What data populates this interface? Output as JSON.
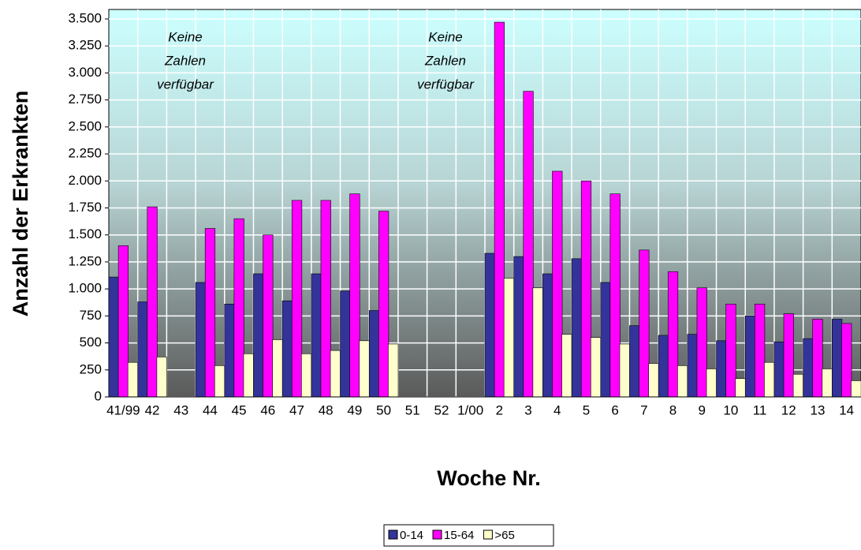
{
  "chart_data": {
    "type": "bar",
    "x_label": "Woche Nr.",
    "y_label": "Anzahl der Erkrankten",
    "categories": [
      "41/99",
      "42",
      "43",
      "44",
      "45",
      "46",
      "47",
      "48",
      "49",
      "50",
      "51",
      "52",
      "1/00",
      "2",
      "3",
      "4",
      "5",
      "6",
      "7",
      "8",
      "9",
      "10",
      "11",
      "12",
      "13",
      "14"
    ],
    "series": [
      {
        "name": "0-14",
        "color": "#333399",
        "values": [
          1110,
          880,
          null,
          1060,
          860,
          1140,
          890,
          1140,
          980,
          800,
          null,
          null,
          null,
          1330,
          1300,
          1140,
          1280,
          1060,
          660,
          570,
          580,
          520,
          750,
          510,
          540,
          720
        ]
      },
      {
        "name": "15-64",
        "color": "#ff00ff",
        "values": [
          1400,
          1760,
          null,
          1560,
          1650,
          1500,
          1820,
          1820,
          1880,
          1720,
          null,
          null,
          null,
          3470,
          2830,
          2090,
          2000,
          1880,
          1360,
          1160,
          1010,
          860,
          860,
          770,
          720,
          680
        ]
      },
      {
        "name": ">65",
        "color": "#ffffcc",
        "values": [
          320,
          370,
          null,
          290,
          400,
          530,
          400,
          430,
          520,
          490,
          null,
          null,
          null,
          1100,
          1010,
          580,
          550,
          490,
          310,
          290,
          260,
          170,
          320,
          210,
          260,
          150
        ]
      }
    ],
    "ylim": [
      0,
      3500
    ],
    "yticks": [
      0,
      {
        "value": 250,
        "label": "250"
      },
      {
        "value": 500,
        "label": "500"
      },
      {
        "value": 750,
        "label": "750"
      },
      {
        "value": 1000,
        "label": "1.000"
      },
      {
        "value": 1250,
        "label": "1.250"
      },
      {
        "value": 1500,
        "label": "1.500"
      },
      {
        "value": 1750,
        "label": "1.750"
      },
      {
        "value": 2000,
        "label": "2.000"
      },
      {
        "value": 2250,
        "label": "2.250"
      },
      {
        "value": 2500,
        "label": "2.500"
      },
      {
        "value": 2750,
        "label": "2.750"
      },
      {
        "value": 3000,
        "label": "3.000"
      },
      {
        "value": 3250,
        "label": "3.250"
      },
      {
        "value": 3500,
        "label": "3.500"
      }
    ],
    "grid": true,
    "legend": "bottom",
    "annotations": [
      [
        "Keine",
        "Zahlen",
        "verfügbar"
      ],
      [
        "Keine",
        "Zahlen",
        "verfügbar"
      ]
    ]
  }
}
